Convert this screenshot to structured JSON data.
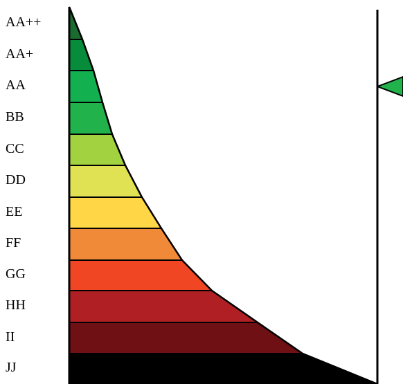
{
  "ratings": [
    {
      "label": "AA++",
      "color": "#1a6b30"
    },
    {
      "label": "AA+",
      "color": "#078c3c"
    },
    {
      "label": "AA",
      "color": "#12b04f"
    },
    {
      "label": "BB",
      "color": "#21b24b"
    },
    {
      "label": "CC",
      "color": "#a3d240"
    },
    {
      "label": "DD",
      "color": "#e0e254"
    },
    {
      "label": "EE",
      "color": "#ffd645"
    },
    {
      "label": "FF",
      "color": "#f08a38"
    },
    {
      "label": "GG",
      "color": "#f04623"
    },
    {
      "label": "HH",
      "color": "#b01f23"
    },
    {
      "label": "II",
      "color": "#6f1014"
    },
    {
      "label": "JJ",
      "color": "#000000"
    }
  ],
  "indicator": {
    "rating": "AA",
    "color": "#21b24b"
  }
}
